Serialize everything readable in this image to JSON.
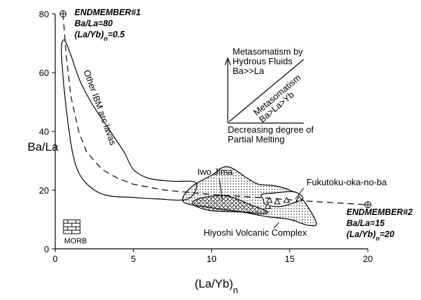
{
  "chart_data": {
    "type": "scatter",
    "x_label": [
      "(La/Yb)",
      "n"
    ],
    "y_label": "Ba/La",
    "xlim": [
      0,
      20
    ],
    "xticks": [
      0,
      5,
      10,
      15,
      20
    ],
    "ylim": [
      0,
      80
    ],
    "yticks": [
      0,
      20,
      40,
      60,
      80
    ],
    "series": [
      {
        "name": "Other IBM arc lavas",
        "color": "#000000",
        "pattern": "none",
        "closed": true,
        "x": [
          0.4,
          0.6,
          1.0,
          1.6,
          2.4,
          3.4,
          4.4,
          5.0,
          6.0,
          7.5,
          9.0,
          8.5,
          6.5,
          5.0,
          3.5,
          2.5,
          1.6,
          1.1,
          0.7,
          0.45
        ],
        "values": [
          69,
          71,
          66,
          57,
          49,
          41,
          33,
          27,
          24,
          23,
          22.5,
          17,
          17,
          17.5,
          18,
          20,
          25,
          33,
          48,
          62
        ]
      },
      {
        "name": "Iwo Jima",
        "color": "#000000",
        "pattern": "dotted",
        "closed": true,
        "x": [
          8.2,
          8.7,
          10.0,
          11.0,
          12.3,
          13.0,
          14.0,
          15.0,
          15.8,
          16.7,
          16.2,
          15.0,
          13.5,
          12.0,
          10.0
        ],
        "values": [
          16,
          21,
          25,
          28,
          24,
          22,
          21.5,
          20,
          17,
          9,
          8,
          10,
          11,
          12.5,
          14
        ]
      },
      {
        "name": "Hiyoshi Volcanic Complex",
        "color": "#000000",
        "pattern": "crosshatch",
        "closed": true,
        "x": [
          8.8,
          9.5,
          11.0,
          12.5,
          13.5,
          13.4,
          12.0,
          10.0,
          9.0
        ],
        "values": [
          16,
          17.5,
          18,
          15,
          13,
          12,
          12.5,
          13,
          14.5
        ]
      },
      {
        "name": "Fukutoku-oka-no-ba",
        "color": "#000000",
        "pattern": "white",
        "closed": true,
        "x": [
          13.3,
          13.2,
          14.0,
          15.0,
          15.5,
          15.8,
          14.5,
          13.5
        ],
        "values": [
          17,
          18.5,
          19,
          19.5,
          19,
          17,
          14.5,
          15
        ]
      },
      {
        "color": "#000000",
        "dash": true,
        "closed": false,
        "x": [
          0.5,
          0.7,
          1.0,
          1.5,
          2.0,
          3.0,
          4.0,
          5.0,
          7.0,
          10.0,
          13.0,
          16.0,
          20.0
        ],
        "values": [
          80,
          66,
          52,
          40,
          33,
          27,
          24,
          22,
          20,
          18.5,
          17.5,
          16.3,
          15
        ]
      },
      {
        "color": "#000000",
        "marker": "triangle",
        "x": [
          13.7,
          14.2,
          14.8,
          15.6,
          13.6
        ],
        "values": [
          16.5,
          16,
          16.5,
          17,
          14.5
        ]
      },
      {
        "color": "#000000",
        "marker": "cross-circle",
        "x": [
          0.5,
          20
        ],
        "values": [
          80,
          15
        ]
      }
    ],
    "annotations": [
      [
        "ENDMEMBER#1",
        "Ba/La=80",
        [
          "(La/Yb)",
          "n",
          "=0.5"
        ]
      ],
      [
        "ENDMEMBER#2",
        "Ba/La=15",
        [
          "(La/Yb)",
          "n",
          "=20"
        ]
      ]
    ],
    "inset": {
      "y_axis_text": [
        "Metasomatism by",
        "Hydrous Fluids",
        "Ba>>La"
      ],
      "diagonal_text": [
        "Metasomatism",
        "Ba>La>Yb"
      ],
      "x_axis_text": [
        "Decreasing degree of",
        "Partial Melting"
      ]
    },
    "morb_label": "MORB"
  }
}
